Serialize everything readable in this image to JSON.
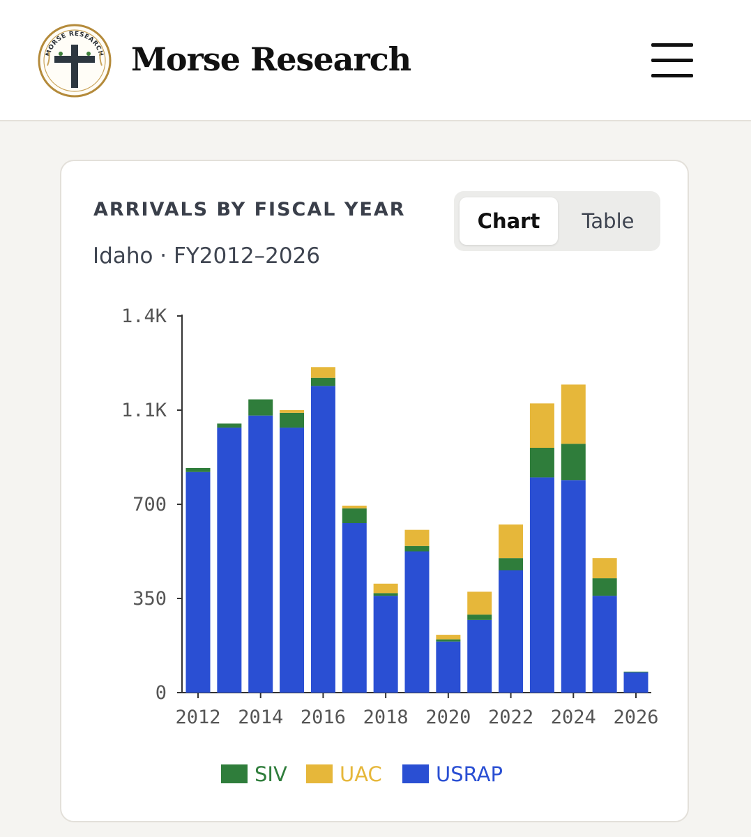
{
  "header": {
    "brand": "Morse Research",
    "logo_text": "MORSE RESEARCH"
  },
  "card": {
    "title": "ARRIVALS BY FISCAL YEAR",
    "subtitle": "Idaho · FY2012–2026",
    "toggle": {
      "chart_label": "Chart",
      "table_label": "Table",
      "active": "Chart"
    }
  },
  "colors": {
    "SIV": "#2f7d3b",
    "UAC": "#e6b73a",
    "USRAP": "#2a4fd3"
  },
  "chart_data": {
    "type": "bar",
    "stacked": true,
    "x": [
      2012,
      2013,
      2014,
      2015,
      2016,
      2017,
      2018,
      2019,
      2020,
      2021,
      2022,
      2023,
      2024,
      2025,
      2026
    ],
    "x_tick_labels": [
      "2012",
      "2014",
      "2016",
      "2018",
      "2020",
      "2022",
      "2024",
      "2026"
    ],
    "y_ticks": [
      0,
      350,
      700,
      1050,
      1400
    ],
    "y_tick_labels": [
      "0",
      "350",
      "700",
      "1.1K",
      "1.4K"
    ],
    "ylim": [
      0,
      1400
    ],
    "series": [
      {
        "name": "USRAP",
        "values": [
          820,
          985,
          1030,
          985,
          1140,
          630,
          360,
          525,
          190,
          270,
          455,
          800,
          790,
          360,
          75
        ]
      },
      {
        "name": "SIV",
        "values": [
          15,
          15,
          60,
          55,
          30,
          55,
          10,
          20,
          8,
          20,
          45,
          110,
          135,
          65,
          3
        ]
      },
      {
        "name": "UAC",
        "values": [
          0,
          0,
          0,
          10,
          40,
          10,
          35,
          60,
          17,
          85,
          125,
          165,
          220,
          75,
          0
        ]
      }
    ],
    "legend": [
      "SIV",
      "UAC",
      "USRAP"
    ],
    "legend_position": "bottom",
    "grid": false
  }
}
